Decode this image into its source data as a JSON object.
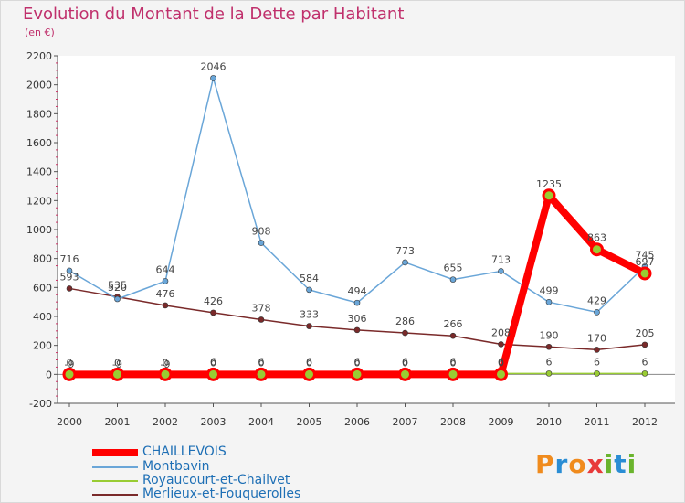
{
  "header": {
    "title": "Evolution du Montant de la Dette par Habitant",
    "subtitle": "(en €)"
  },
  "logo": {
    "letters": [
      "P",
      "r",
      "o",
      "x",
      "i",
      "t",
      "i"
    ],
    "colors": [
      "#f08b1d",
      "#2a8dd4",
      "#f08b1d",
      "#e83a3a",
      "#6ab42d",
      "#2a8dd4",
      "#6ab42d"
    ]
  },
  "chart_data": {
    "type": "line",
    "title": "Evolution du Montant de la Dette par Habitant",
    "subtitle": "(en €)",
    "x": [
      "2000",
      "2001",
      "2002",
      "2003",
      "2004",
      "2005",
      "2006",
      "2007",
      "2008",
      "2009",
      "2010",
      "2011",
      "2012"
    ],
    "ylim": [
      -200,
      2200
    ],
    "yticks": [
      -200,
      0,
      200,
      400,
      600,
      800,
      1000,
      1200,
      1400,
      1600,
      1800,
      2000,
      2200
    ],
    "grid": false,
    "legend": "bottom-left",
    "series": [
      {
        "name": "CHAILLEVOIS",
        "color": "#ff0000",
        "values": [
          0,
          0,
          0,
          0,
          0,
          0,
          0,
          0,
          0,
          0,
          1235,
          863,
          697
        ]
      },
      {
        "name": "Montbavin",
        "color": "#6aa6d8",
        "values": [
          716,
          520,
          644,
          2046,
          908,
          584,
          494,
          773,
          655,
          713,
          499,
          429,
          745
        ]
      },
      {
        "name": "Royaucourt-et-Chailvet",
        "color": "#99cc33",
        "values": [
          -9,
          -9,
          -9,
          6,
          6,
          6,
          6,
          6,
          6,
          6,
          6,
          6,
          6
        ]
      },
      {
        "name": "Merlieux-et-Fouquerolles",
        "color": "#7a2a2a",
        "values": [
          593,
          535,
          476,
          426,
          378,
          333,
          306,
          286,
          266,
          208,
          190,
          170,
          205
        ]
      }
    ]
  }
}
